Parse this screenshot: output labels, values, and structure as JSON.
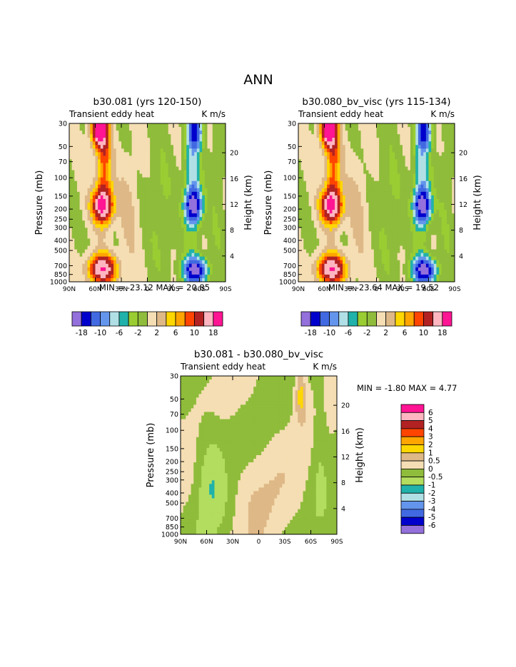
{
  "page_title": "ANN",
  "chart_data": [
    {
      "type": "heatmap",
      "subtype": "filled-contour",
      "title": "b30.081 (yrs 120-150)",
      "variable": "Transient eddy heat",
      "units": "K m/s",
      "xlabel": "",
      "ylabel": "Pressure (mb)",
      "ylabel_right": "Height (km)",
      "x_ticks": [
        "90N",
        "60N",
        "30N",
        "0",
        "30S",
        "60S",
        "90S"
      ],
      "x_values": [
        90,
        60,
        30,
        0,
        -30,
        -60,
        -90
      ],
      "xlim": [
        90,
        -90
      ],
      "y_ticks": [
        30,
        50,
        70,
        100,
        150,
        200,
        250,
        300,
        400,
        500,
        700,
        850,
        1000
      ],
      "ylim": [
        1000,
        30
      ],
      "yscale": "log",
      "height_ticks": [
        4,
        8,
        12,
        16,
        20
      ],
      "stats": "MIN = -23.12   MAX =  20.85",
      "min": -23.12,
      "max": 20.85,
      "levels": [
        -18,
        -14,
        -10,
        -8,
        -6,
        -4,
        -2,
        0,
        2,
        4,
        6,
        8,
        10,
        14,
        18
      ],
      "colorbar_labels": [
        "-18",
        "-10",
        "-6",
        "-2",
        "2",
        "6",
        "10",
        "18"
      ],
      "colorbar_orientation": "horizontal"
    },
    {
      "type": "heatmap",
      "subtype": "filled-contour",
      "title": "b30.080_bv_visc (yrs 115-134)",
      "variable": "Transient eddy heat",
      "units": "K m/s",
      "xlabel": "",
      "ylabel": "Pressure (mb)",
      "ylabel_right": "Height (km)",
      "x_ticks": [
        "90N",
        "60N",
        "30N",
        "0",
        "30S",
        "60S",
        "90S"
      ],
      "x_values": [
        90,
        60,
        30,
        0,
        -30,
        -60,
        -90
      ],
      "xlim": [
        90,
        -90
      ],
      "y_ticks": [
        30,
        50,
        70,
        100,
        150,
        200,
        250,
        300,
        400,
        500,
        700,
        850,
        1000
      ],
      "ylim": [
        1000,
        30
      ],
      "yscale": "log",
      "height_ticks": [
        4,
        8,
        12,
        16,
        20
      ],
      "stats": "MIN = -23.64   MAX =  19.52",
      "min": -23.64,
      "max": 19.52,
      "levels": [
        -18,
        -14,
        -10,
        -8,
        -6,
        -4,
        -2,
        0,
        2,
        4,
        6,
        8,
        10,
        14,
        18
      ],
      "colorbar_labels": [
        "-18",
        "-10",
        "-6",
        "-2",
        "2",
        "6",
        "10",
        "18"
      ],
      "colorbar_orientation": "horizontal"
    },
    {
      "type": "heatmap",
      "subtype": "filled-contour",
      "title": "b30.081 - b30.080_bv_visc",
      "variable": "Transient eddy heat",
      "units": "K m/s",
      "xlabel": "",
      "ylabel": "Pressure (mb)",
      "ylabel_right": "Height (km)",
      "x_ticks": [
        "90N",
        "60N",
        "30N",
        "0",
        "30S",
        "60S",
        "90S"
      ],
      "x_values": [
        90,
        60,
        30,
        0,
        -30,
        -60,
        -90
      ],
      "xlim": [
        90,
        -90
      ],
      "y_ticks": [
        30,
        50,
        70,
        100,
        150,
        200,
        250,
        300,
        400,
        500,
        700,
        850,
        1000
      ],
      "ylim": [
        1000,
        30
      ],
      "yscale": "log",
      "height_ticks": [
        4,
        8,
        12,
        16,
        20
      ],
      "stats": "MIN =  -1.80   MAX =   4.77",
      "min": -1.8,
      "max": 4.77,
      "levels": [
        -6,
        -5,
        -4,
        -3,
        -2,
        -1,
        -0.5,
        0,
        0.5,
        1,
        2,
        3,
        4,
        5,
        6
      ],
      "colorbar_labels": [
        "6",
        "5",
        "4",
        "3",
        "2",
        "1",
        "0.5",
        "0",
        "-0.5",
        "-1",
        "-2",
        "-3",
        "-4",
        "-5",
        "-6"
      ],
      "colorbar_orientation": "vertical"
    }
  ],
  "colors": {
    "palette": [
      "#9370db",
      "#0000cd",
      "#4169e1",
      "#6495ed",
      "#b0e0e6",
      "#20b2aa",
      "#9acd32",
      "#8fbc3b",
      "#f5deb3",
      "#deb887",
      "#ffd700",
      "#ffa500",
      "#ff4500",
      "#b22222",
      "#ffb6c1",
      "#ff1493"
    ],
    "diff_palette": [
      "#ff1493",
      "#ffb6c1",
      "#b22222",
      "#ff4500",
      "#ffa500",
      "#ffd700",
      "#deb887",
      "#f5deb3",
      "#8fbc3b",
      "#b3dd5f",
      "#20b2aa",
      "#b0e0e6",
      "#6495ed",
      "#4169e1",
      "#0000cd",
      "#9370db"
    ]
  }
}
